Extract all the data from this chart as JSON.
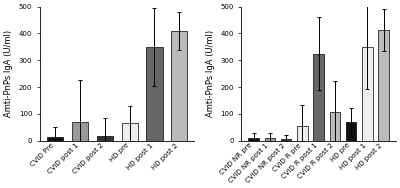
{
  "chart1": {
    "categories": [
      "CVID Pre",
      "CVID post 1",
      "CVID post 2",
      "HD pre",
      "HD post 1",
      "HD post 2"
    ],
    "values": [
      15,
      70,
      18,
      65,
      350,
      410
    ],
    "errors": [
      35,
      155,
      65,
      65,
      145,
      70
    ],
    "colors": [
      "#111111",
      "#999999",
      "#333333",
      "#eeeeee",
      "#666666",
      "#bbbbbb"
    ],
    "ylabel": "Amti-PnPs IgA (U/ml)",
    "ylim": [
      0,
      500
    ],
    "yticks": [
      0,
      100,
      200,
      300,
      400,
      500
    ]
  },
  "chart2": {
    "categories": [
      "CVID NR pre",
      "CVID NR post 1",
      "CVID NR post 2",
      "CVID R pre",
      "CVID R post 1",
      "CVID R post 2",
      "HD pre",
      "HD post 1",
      "HD post 2"
    ],
    "values": [
      12,
      10,
      8,
      55,
      325,
      108,
      68,
      348,
      413
    ],
    "errors": [
      18,
      18,
      15,
      80,
      135,
      115,
      55,
      155,
      80
    ],
    "colors": [
      "#111111",
      "#999999",
      "#333333",
      "#eeeeee",
      "#666666",
      "#bbbbbb",
      "#111111",
      "#eeeeee",
      "#bbbbbb"
    ],
    "ylabel": "Amti-PnPs IgA (U/ml)",
    "ylim": [
      0,
      500
    ],
    "yticks": [
      0,
      100,
      200,
      300,
      400,
      500
    ]
  },
  "background_color": "#ffffff",
  "bar_width": 0.65,
  "tick_fontsize": 5.0,
  "label_fontsize": 6.0
}
